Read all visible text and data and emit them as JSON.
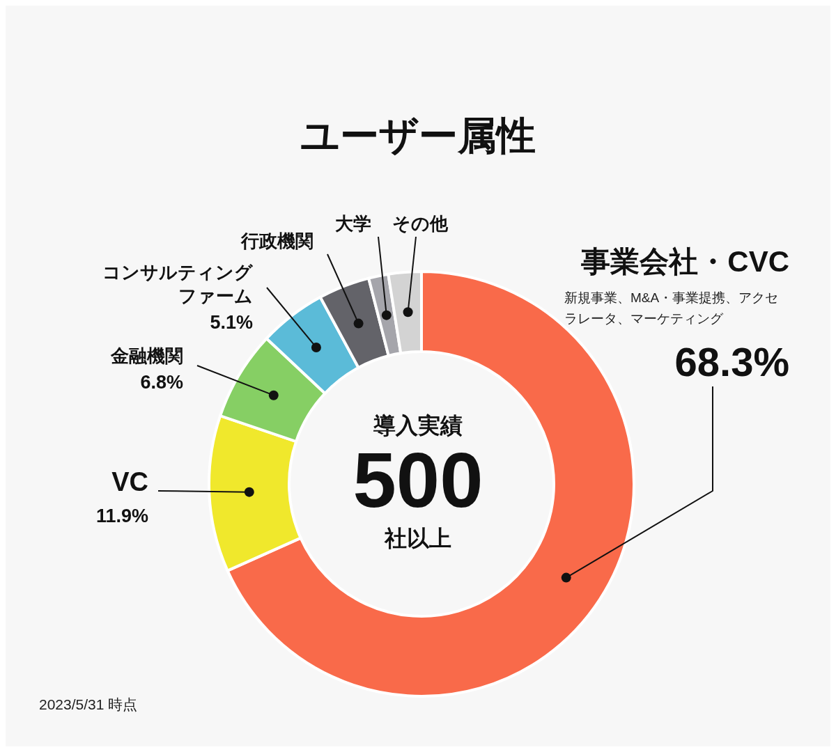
{
  "chart_data": {
    "type": "donut",
    "title": "ユーザー属性",
    "categories": [
      "事業会社・CVC",
      "VC",
      "金融機関",
      "コンサルティングファーム",
      "行政機関",
      "大学",
      "その他"
    ],
    "values": [
      68.3,
      11.9,
      6.8,
      5.1,
      3.9,
      1.5,
      2.5
    ],
    "colors": [
      "#f96a4a",
      "#f0e82c",
      "#86cf64",
      "#5bbbd8",
      "#636369",
      "#a5a5ab",
      "#d3d3d3"
    ],
    "value_labels": [
      "68.3%",
      "11.9%",
      "6.8%",
      "5.1%",
      null,
      null,
      null
    ],
    "annotations": [
      "導入実績",
      "500",
      "社以上",
      "新規事業、M&A・事業提携、アクセラレータ、マーケティング",
      "2023/5/31 時点"
    ]
  }
}
